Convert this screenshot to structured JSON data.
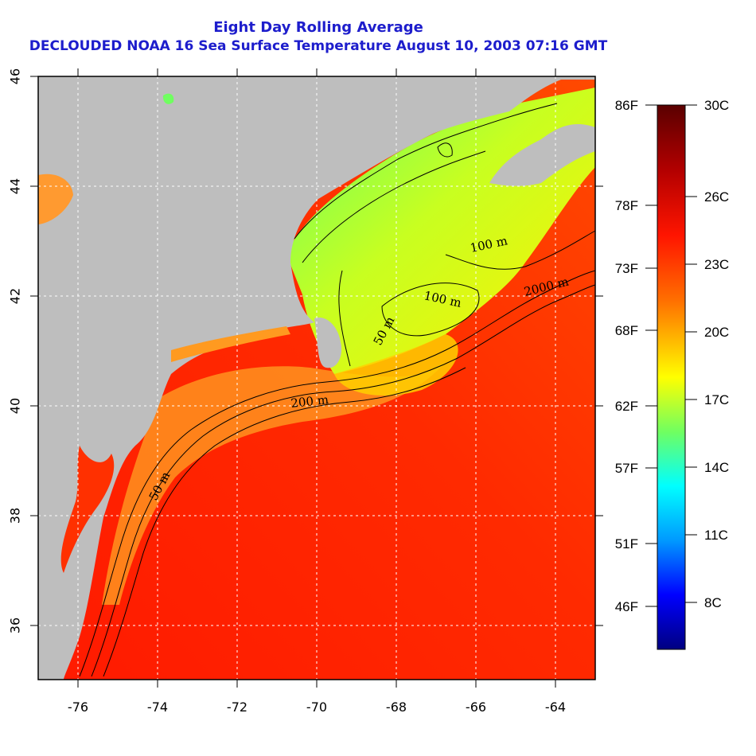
{
  "header": {
    "title": "Eight Day Rolling Average",
    "subtitle": "DECLOUDED NOAA 16 Sea Surface Temperature August 10, 2003 07:16 GMT"
  },
  "map": {
    "x_ticks": [
      "-76",
      "-74",
      "-72",
      "-70",
      "-68",
      "-66",
      "-64"
    ],
    "y_ticks": [
      "36",
      "38",
      "40",
      "42",
      "44",
      "46"
    ],
    "contour_labels": [
      "100 m",
      "2000 m",
      "100 m",
      "50 m",
      "200 m",
      "50 m"
    ],
    "land_color": "#bebebe",
    "grid": true
  },
  "colorbar": {
    "fahrenheit_labels": [
      "86F",
      "78F",
      "73F",
      "68F",
      "62F",
      "57F",
      "51F",
      "46F"
    ],
    "celsius_labels": [
      "30C",
      "26C",
      "23C",
      "20C",
      "17C",
      "14C",
      "11C",
      "8C"
    ],
    "colors": [
      "#5a0000",
      "#b30000",
      "#ff0000",
      "#ff6600",
      "#ffb300",
      "#ffff00",
      "#66ff66",
      "#00ffff",
      "#0099ff",
      "#0000ff",
      "#000080"
    ]
  }
}
